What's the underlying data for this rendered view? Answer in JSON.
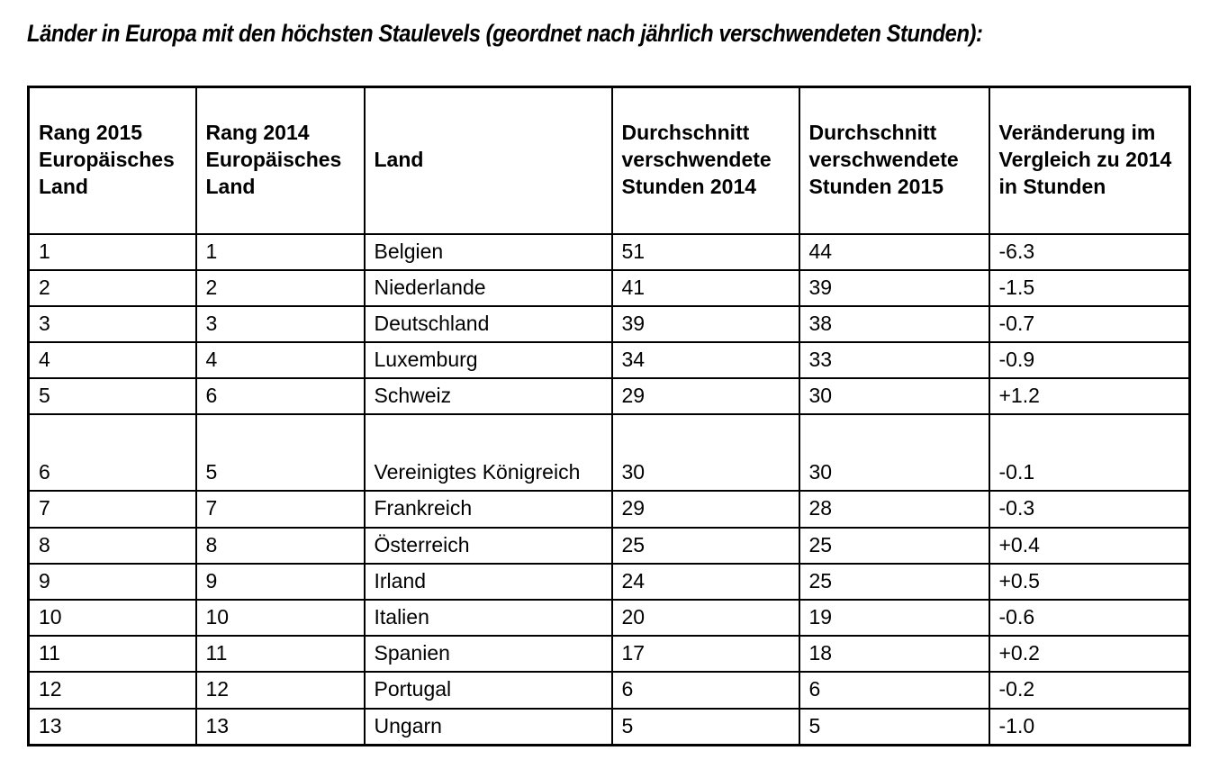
{
  "page": {
    "title": "Länder in Europa mit den höchsten Staulevels (geordnet nach jährlich verschwendeten Stunden):"
  },
  "table": {
    "columns": [
      "Rang 2015 Europäisches Land",
      "Rang 2014 Europäisches Land",
      "Land",
      "Durchschnitt verschwendete Stunden 2014",
      "Durchschnitt verschwendete Stunden 2015",
      "Veränderung im Vergleich zu 2014 in Stunden"
    ],
    "rows": [
      [
        "1",
        "1",
        "Belgien",
        "51",
        "44",
        "-6.3"
      ],
      [
        "2",
        "2",
        "Niederlande",
        "41",
        "39",
        "-1.5"
      ],
      [
        "3",
        "3",
        "Deutschland",
        "39",
        "38",
        "-0.7"
      ],
      [
        "4",
        "4",
        "Luxemburg",
        "34",
        "33",
        "-0.9"
      ],
      [
        "5",
        "6",
        "Schweiz",
        "29",
        "30",
        "+1.2"
      ],
      [
        "6",
        "5",
        "Vereinigtes Königreich",
        "30",
        "30",
        "-0.1"
      ],
      [
        "7",
        "7",
        "Frankreich",
        "29",
        "28",
        "-0.3"
      ],
      [
        "8",
        "8",
        "Österreich",
        "25",
        "25",
        "+0.4"
      ],
      [
        "9",
        "9",
        "Irland",
        "24",
        "25",
        "+0.5"
      ],
      [
        "10",
        "10",
        "Italien",
        "20",
        "19",
        "-0.6"
      ],
      [
        "11",
        "11",
        "Spanien",
        "17",
        "18",
        "+0.2"
      ],
      [
        "12",
        "12",
        "Portugal",
        "6",
        "6",
        "-0.2"
      ],
      [
        "13",
        "13",
        "Ungarn",
        "5",
        "5",
        "-1.0"
      ]
    ]
  }
}
